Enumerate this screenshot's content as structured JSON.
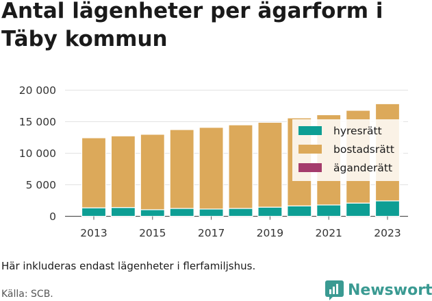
{
  "title": "Antal lägenheter per ägarform i Täby kommun",
  "note": "Här inkluderas endast lägenheter i flerfamiljshus.",
  "source": "Källa: SCB.",
  "brand": {
    "name": "Newsworthy",
    "logo_icon": "bar-chart-speech-bubble-icon",
    "color": "#3a9a92"
  },
  "chart_data": {
    "type": "bar",
    "stacked": true,
    "title": "Antal lägenheter per ägarform i Täby kommun",
    "xlabel": "",
    "ylabel": "",
    "categories": [
      "2013",
      "2014",
      "2015",
      "2016",
      "2017",
      "2018",
      "2019",
      "2020",
      "2021",
      "2022",
      "2023"
    ],
    "x_tick_labels": [
      "2013",
      "2015",
      "2017",
      "2019",
      "2021",
      "2023"
    ],
    "y_ticks": [
      0,
      5000,
      10000,
      15000,
      20000
    ],
    "y_tick_labels": [
      "0",
      "5 000",
      "10 000",
      "15 000",
      "20 000"
    ],
    "ylim": [
      0,
      20000
    ],
    "grid": true,
    "legend_position": "right",
    "series": [
      {
        "name": "hyresrätt",
        "color": "#0d9e94",
        "values": [
          1350,
          1400,
          1050,
          1250,
          1150,
          1250,
          1450,
          1650,
          1800,
          2100,
          2450
        ]
      },
      {
        "name": "bostadsrätt",
        "color": "#dca95a",
        "values": [
          11100,
          11350,
          11950,
          12500,
          12950,
          13250,
          13450,
          13950,
          14300,
          14700,
          15400
        ]
      },
      {
        "name": "äganderätt",
        "color": "#a43c6c",
        "values": [
          0,
          0,
          0,
          0,
          0,
          0,
          0,
          0,
          0,
          0,
          0
        ]
      }
    ]
  }
}
